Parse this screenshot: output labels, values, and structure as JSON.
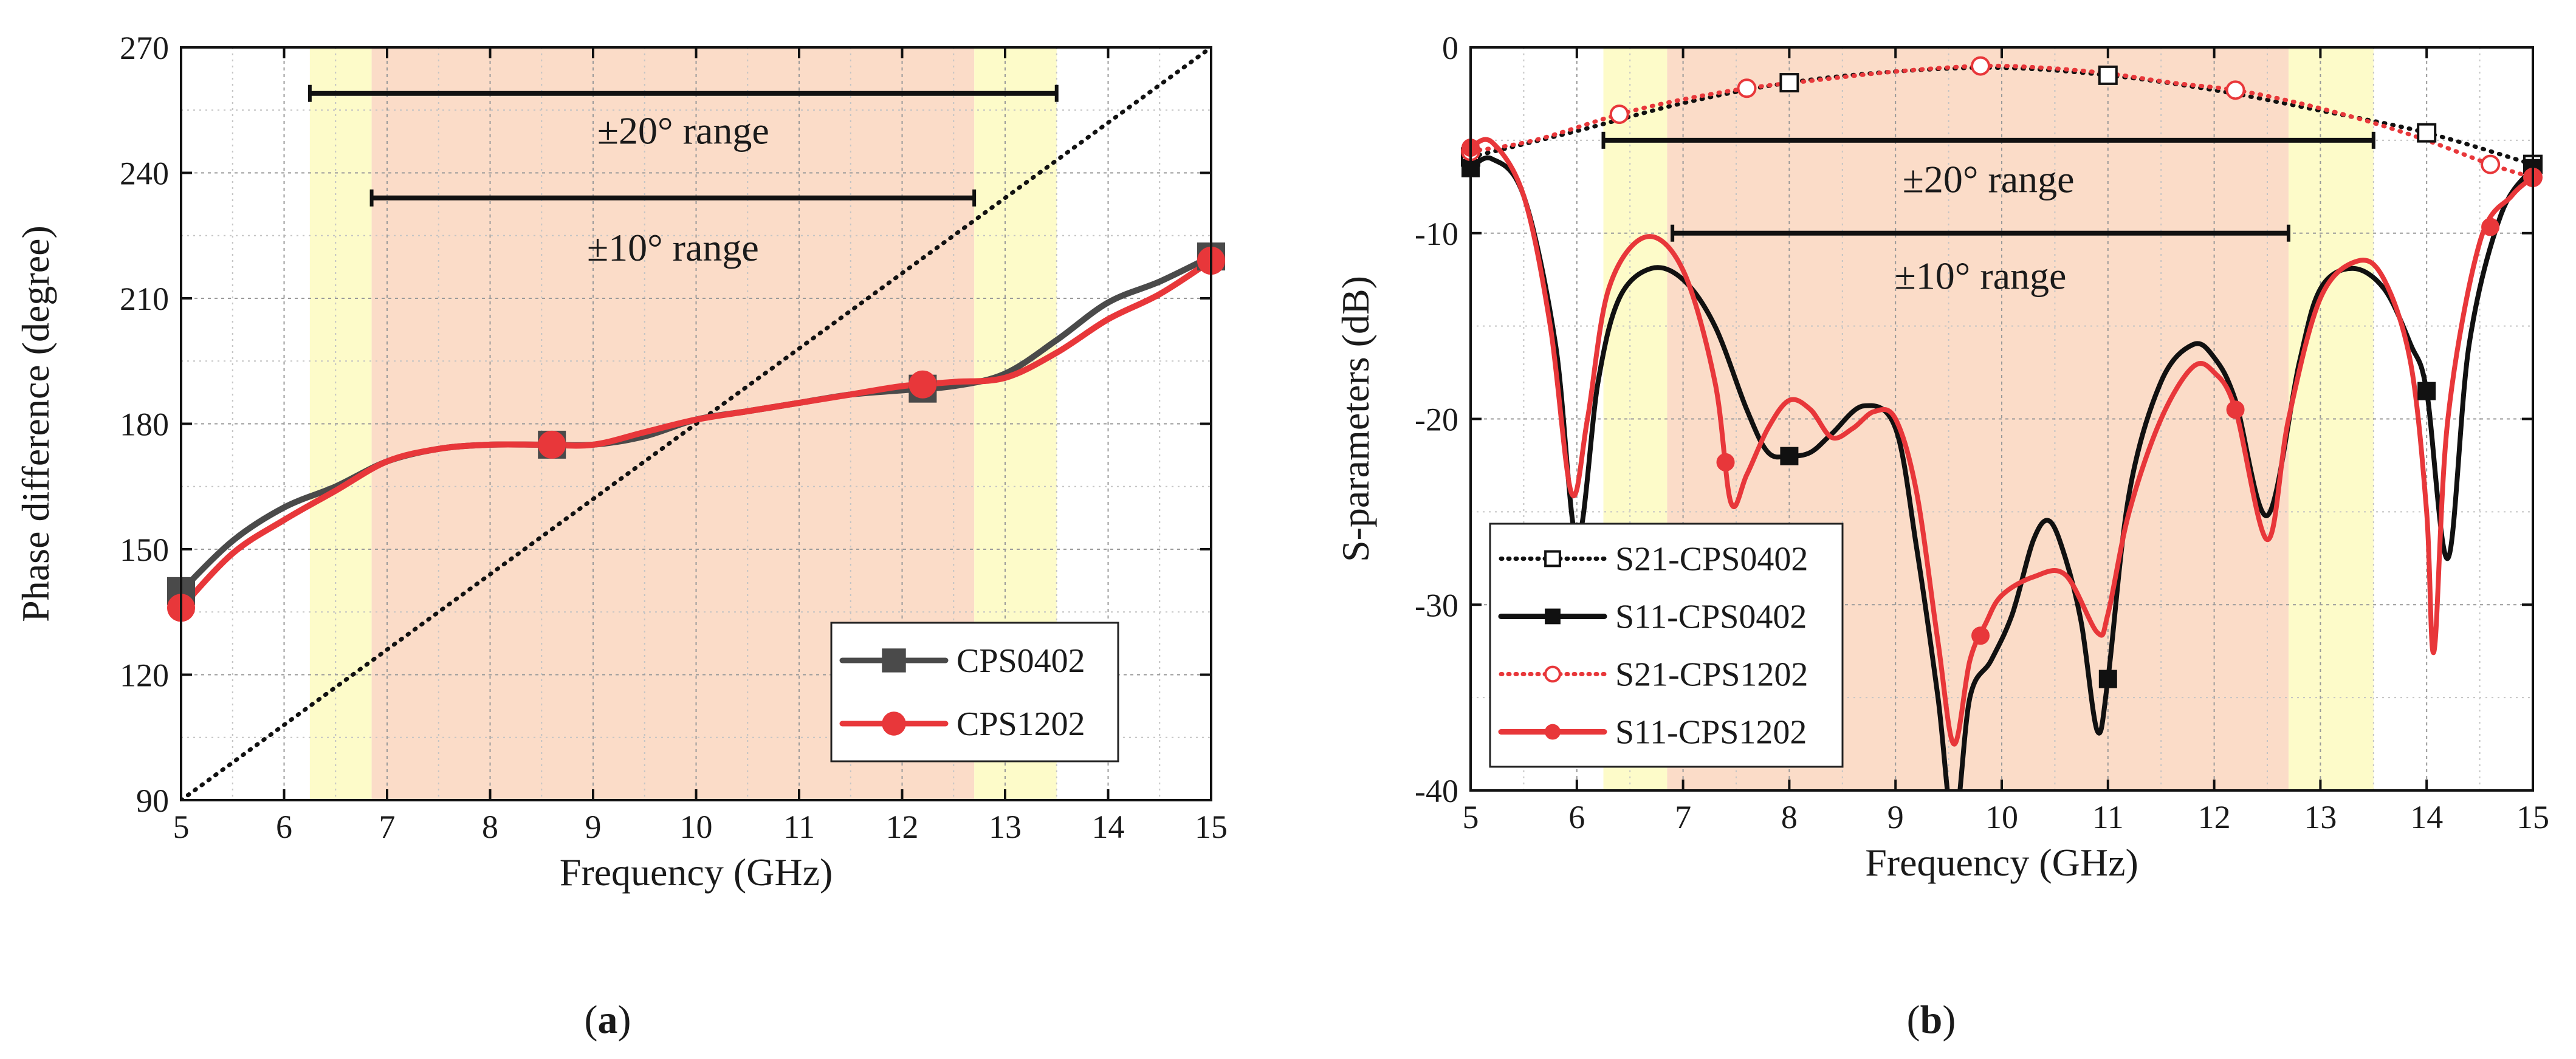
{
  "chart_data": [
    {
      "panel": "(a)",
      "type": "line",
      "xlabel": "Frequency (GHz)",
      "ylabel": "Phase difference (degree)",
      "xlim": [
        5,
        15
      ],
      "ylim": [
        90,
        270
      ],
      "xticks": [
        5,
        6,
        7,
        8,
        9,
        10,
        11,
        12,
        13,
        14,
        15
      ],
      "yticks": [
        90,
        120,
        150,
        180,
        210,
        240,
        270
      ],
      "grid": true,
      "legend_position": "bottom-right",
      "bands": [
        {
          "x0": 6.25,
          "x1": 6.85,
          "color": "#fdfbc9"
        },
        {
          "x0": 6.85,
          "x1": 12.7,
          "color": "#fbdcc8"
        },
        {
          "x0": 12.7,
          "x1": 13.5,
          "color": "#fdfbc9"
        }
      ],
      "ranges": [
        {
          "label": "±20° range",
          "x0": 6.25,
          "x1": 13.5,
          "y": 259,
          "label_y": 247
        },
        {
          "label": "±10° range",
          "x0": 6.85,
          "x1": 12.7,
          "y": 234,
          "label_y": 219
        }
      ],
      "reference_line": {
        "x": [
          5,
          15
        ],
        "y": [
          90,
          270
        ],
        "color": "#111111",
        "style": "dotted"
      },
      "series": [
        {
          "name": "CPS0402",
          "color": "#4a4a4a",
          "marker": "square",
          "x": [
            5.0,
            5.5,
            6.0,
            6.5,
            7.0,
            7.5,
            8.0,
            8.5,
            9.0,
            9.5,
            10.0,
            10.5,
            11.0,
            11.5,
            12.0,
            12.5,
            13.0,
            13.5,
            14.0,
            14.5,
            15.0
          ],
          "y": [
            140,
            152,
            160,
            165,
            171,
            174,
            175,
            175,
            175,
            177,
            181,
            183,
            185,
            187,
            188,
            189,
            192,
            200,
            209,
            214,
            220
          ],
          "marker_x": [
            5.0,
            8.6,
            12.2,
            15.0
          ]
        },
        {
          "name": "CPS1202",
          "color": "#e8373a",
          "marker": "circle",
          "x": [
            5.0,
            5.5,
            6.0,
            6.5,
            7.0,
            7.5,
            8.0,
            8.5,
            9.0,
            9.5,
            10.0,
            10.5,
            11.0,
            11.5,
            12.0,
            12.5,
            13.0,
            13.5,
            14.0,
            14.5,
            15.0
          ],
          "y": [
            136,
            149,
            157,
            164,
            171,
            174,
            175,
            175,
            175,
            178,
            181,
            183,
            185,
            187,
            189,
            190,
            191,
            197,
            205,
            211,
            219
          ],
          "marker_x": [
            5.0,
            8.6,
            12.2,
            15.0
          ]
        }
      ]
    },
    {
      "panel": "(b)",
      "type": "line",
      "xlabel": "Frequency (GHz)",
      "ylabel": "S-parameters (dB)",
      "xlim": [
        5,
        15
      ],
      "ylim": [
        -40,
        0
      ],
      "xticks": [
        5,
        6,
        7,
        8,
        9,
        10,
        11,
        12,
        13,
        14,
        15
      ],
      "yticks": [
        -40,
        -30,
        -20,
        -10,
        0
      ],
      "grid": true,
      "legend_position": "bottom-left",
      "bands": [
        {
          "x0": 6.25,
          "x1": 6.85,
          "color": "#fdfbc9"
        },
        {
          "x0": 6.85,
          "x1": 12.7,
          "color": "#fbdcc8"
        },
        {
          "x0": 12.7,
          "x1": 13.5,
          "color": "#fdfbc9"
        }
      ],
      "ranges": [
        {
          "label": "±20° range",
          "x0": 6.25,
          "x1": 13.5,
          "y": -5,
          "label_y": -7.8
        },
        {
          "label": "±10° range",
          "x0": 6.9,
          "x1": 12.7,
          "y": -10,
          "label_y": -13
        }
      ],
      "series": [
        {
          "name": "S21-CPS0402",
          "color": "#111111",
          "style": "dotted",
          "marker": "open-square",
          "x": [
            5.0,
            6.0,
            7.0,
            8.0,
            9.0,
            10.0,
            11.0,
            12.0,
            13.0,
            14.0,
            15.0
          ],
          "y": [
            -5.9,
            -4.5,
            -3.0,
            -1.9,
            -1.3,
            -1.1,
            -1.5,
            -2.3,
            -3.4,
            -4.6,
            -6.3
          ],
          "marker_x": [
            5.0,
            8.0,
            11.0,
            14.0,
            15.0
          ]
        },
        {
          "name": "S11-CPS0402",
          "color": "#111111",
          "style": "solid",
          "marker": "filled-square",
          "x": [
            5.0,
            5.2,
            5.5,
            5.8,
            6.0,
            6.2,
            6.4,
            6.7,
            7.0,
            7.3,
            7.6,
            7.8,
            8.0,
            8.2,
            8.4,
            8.7,
            9.0,
            9.2,
            9.4,
            9.55,
            9.7,
            9.9,
            10.1,
            10.3,
            10.45,
            10.6,
            10.75,
            10.9,
            11.0,
            11.2,
            11.5,
            11.8,
            12.0,
            12.2,
            12.5,
            12.8,
            13.0,
            13.3,
            13.6,
            13.85,
            14.0,
            14.2,
            14.4,
            14.7,
            15.0
          ],
          "y": [
            -6.5,
            -6.0,
            -8.0,
            -16.0,
            -26.5,
            -18.0,
            -13.5,
            -11.9,
            -12.5,
            -15.0,
            -19.5,
            -21.8,
            -22.0,
            -21.8,
            -20.8,
            -19.3,
            -20.5,
            -27.0,
            -35.0,
            -42.0,
            -35.0,
            -33.0,
            -30.5,
            -26.5,
            -25.5,
            -27.5,
            -31.0,
            -36.8,
            -34.0,
            -24.0,
            -18.0,
            -16.0,
            -16.7,
            -19.0,
            -25.2,
            -17.0,
            -13.0,
            -11.9,
            -13.0,
            -16.0,
            -18.5,
            -27.5,
            -16.0,
            -9.0,
            -6.5
          ],
          "marker_x": [
            5.0,
            8.0,
            11.0,
            14.0,
            15.0
          ]
        },
        {
          "name": "S21-CPS1202",
          "color": "#e8373a",
          "style": "dotted",
          "marker": "open-circle",
          "x": [
            5.0,
            5.6,
            6.4,
            7.0,
            7.6,
            8.2,
            9.0,
            9.8,
            10.4,
            11.0,
            11.6,
            12.2,
            12.8,
            13.4,
            14.0,
            14.6,
            15.0
          ],
          "y": [
            -5.6,
            -5.0,
            -3.6,
            -2.8,
            -2.2,
            -1.8,
            -1.3,
            -1.0,
            -1.1,
            -1.4,
            -1.9,
            -2.3,
            -3.0,
            -3.9,
            -5.0,
            -6.3,
            -7.0
          ],
          "marker_x": [
            5.0,
            6.4,
            7.6,
            9.8,
            12.2,
            14.6,
            15.0
          ]
        },
        {
          "name": "S11-CPS1202",
          "color": "#e8373a",
          "style": "solid",
          "marker": "filled-circle",
          "x": [
            5.0,
            5.2,
            5.5,
            5.75,
            5.95,
            6.1,
            6.3,
            6.65,
            7.0,
            7.3,
            7.45,
            7.6,
            7.8,
            8.0,
            8.2,
            8.4,
            8.6,
            8.8,
            9.0,
            9.2,
            9.4,
            9.55,
            9.7,
            9.85,
            10.0,
            10.3,
            10.6,
            10.9,
            11.0,
            11.2,
            11.5,
            11.8,
            12.0,
            12.2,
            12.5,
            12.7,
            13.0,
            13.35,
            13.6,
            13.85,
            14.0,
            14.07,
            14.2,
            14.5,
            14.8,
            15.0
          ],
          "y": [
            -5.4,
            -5.1,
            -8.0,
            -15.0,
            -24.0,
            -20.0,
            -13.0,
            -10.2,
            -12.0,
            -18.0,
            -24.5,
            -23.0,
            -20.5,
            -19.0,
            -19.5,
            -21.0,
            -20.5,
            -19.6,
            -20.0,
            -24.0,
            -32.0,
            -37.5,
            -33.0,
            -31.0,
            -29.5,
            -28.5,
            -28.4,
            -31.5,
            -30.5,
            -25.0,
            -20.0,
            -17.2,
            -17.5,
            -19.5,
            -26.5,
            -20.0,
            -13.5,
            -11.5,
            -12.5,
            -17.0,
            -25.0,
            -32.5,
            -20.0,
            -10.5,
            -8.0,
            -7.0
          ],
          "marker_x": [
            5.0,
            7.4,
            9.8,
            12.2,
            14.6,
            15.0
          ]
        }
      ]
    }
  ],
  "panels": {
    "a_label": "a",
    "b_label": "b"
  }
}
